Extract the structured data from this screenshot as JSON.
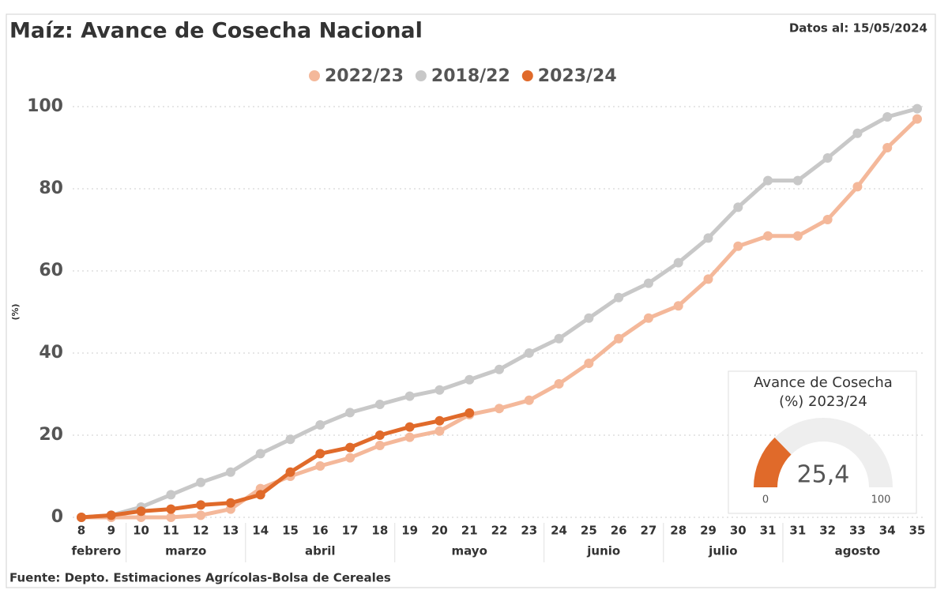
{
  "chart_data": [
    {
      "type": "line",
      "title": "Maíz: Avance de Cosecha Nacional",
      "subtitle": "Datos al: 15/05/2024",
      "y_label": "(%)",
      "source": "Fuente: Depto. Estimaciones Agrícolas-Bolsa de Cereales",
      "categories": [
        "8",
        "9",
        "10",
        "11",
        "12",
        "13",
        "14",
        "15",
        "16",
        "17",
        "18",
        "19",
        "20",
        "21",
        "22",
        "23",
        "24",
        "25",
        "26",
        "27",
        "28",
        "29",
        "30",
        "31",
        "31",
        "32",
        "33",
        "34",
        "35"
      ],
      "month_groups": [
        {
          "label": "febrero",
          "from": 0,
          "to": 1
        },
        {
          "label": "marzo",
          "from": 2,
          "to": 5
        },
        {
          "label": "abril",
          "from": 6,
          "to": 10
        },
        {
          "label": "mayo",
          "from": 11,
          "to": 15
        },
        {
          "label": "junio",
          "from": 16,
          "to": 19
        },
        {
          "label": "julio",
          "from": 20,
          "to": 23
        },
        {
          "label": "agosto",
          "from": 24,
          "to": 28
        }
      ],
      "ylim": [
        0,
        100
      ],
      "yticks": [
        0,
        20,
        40,
        60,
        80,
        100
      ],
      "grid": true,
      "legend": "top",
      "series": [
        {
          "name": "2022/23",
          "color": "#f4b89a",
          "values": [
            0,
            0,
            0,
            0,
            0.5,
            2,
            7,
            10,
            12.5,
            14.5,
            17.5,
            19.5,
            21,
            25,
            26.5,
            28.5,
            32.5,
            37.5,
            43.5,
            48.5,
            51.5,
            58,
            66,
            68.5,
            68.5,
            72.5,
            80.5,
            90,
            97
          ]
        },
        {
          "name": "2018/22",
          "color": "#c8c8c8",
          "values": [
            0,
            0.5,
            2.5,
            5.5,
            8.5,
            11,
            15.5,
            19,
            22.5,
            25.5,
            27.5,
            29.5,
            31,
            33.5,
            36,
            40,
            43.5,
            48.5,
            53.5,
            57,
            62,
            68,
            75.5,
            82,
            82,
            87.5,
            93.5,
            97.5,
            99.5
          ]
        },
        {
          "name": "2023/24",
          "color": "#e06a2a",
          "values": [
            0,
            0.5,
            1.5,
            2,
            3,
            3.5,
            5.5,
            11,
            15.5,
            17,
            20,
            22,
            23.5,
            25.4,
            null,
            null,
            null,
            null,
            null,
            null,
            null,
            null,
            null,
            null,
            null,
            null,
            null,
            null,
            null
          ]
        }
      ]
    },
    {
      "type": "gauge",
      "title": "Avance de Cosecha",
      "subtitle": "(%) 2023/24",
      "value": 25.4,
      "value_label": "25,4",
      "min": 0,
      "max": 100,
      "color": "#e06a2a",
      "track_color": "#eeeeee"
    }
  ]
}
